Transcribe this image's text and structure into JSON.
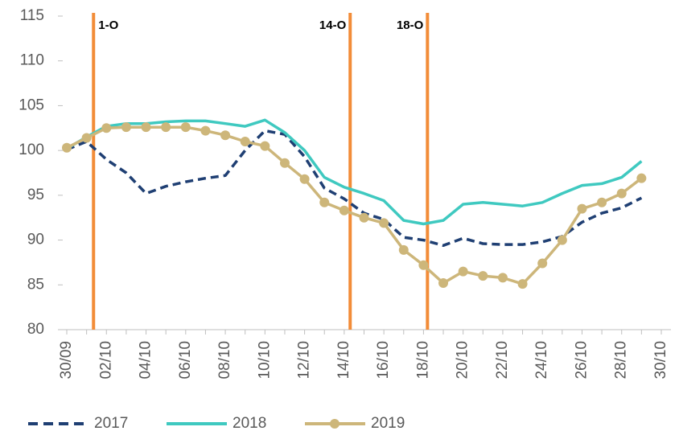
{
  "chart_data": {
    "type": "line",
    "categories": [
      "30/09",
      null,
      "02/10",
      null,
      "04/10",
      null,
      "06/10",
      null,
      "08/10",
      null,
      "10/10",
      null,
      "12/10",
      null,
      "14/10",
      null,
      "16/10",
      null,
      "18/10",
      null,
      "20/10",
      null,
      "22/10",
      null,
      "24/10",
      null,
      "26/10",
      null,
      "28/10",
      null,
      "30/10"
    ],
    "series": [
      {
        "name": "2017",
        "color": "#1f3f73",
        "style": "dashed",
        "values": [
          100.1,
          101.0,
          99.0,
          97.5,
          95.2,
          96.0,
          96.5,
          96.9,
          97.2,
          100.0,
          102.2,
          101.8,
          99.3,
          95.8,
          94.6,
          93.0,
          92.3,
          90.3,
          90.0,
          89.4,
          90.2,
          89.6,
          89.5,
          89.5,
          89.8,
          90.4,
          92.0,
          93.0,
          93.6,
          94.7,
          null
        ]
      },
      {
        "name": "2018",
        "color": "#3fc9c0",
        "style": "solid",
        "values": [
          100.2,
          101.5,
          102.7,
          103.0,
          103.0,
          103.2,
          103.3,
          103.3,
          103.0,
          102.7,
          103.4,
          102.0,
          100.0,
          97.0,
          95.9,
          95.2,
          94.4,
          92.2,
          91.8,
          92.2,
          94.0,
          94.2,
          94.0,
          93.8,
          94.2,
          95.2,
          96.1,
          96.3,
          97.0,
          98.8,
          null
        ]
      },
      {
        "name": "2019",
        "color": "#cdb67a",
        "style": "solid",
        "marker": "circle",
        "values": [
          100.3,
          101.4,
          102.5,
          102.6,
          102.6,
          102.6,
          102.6,
          102.2,
          101.7,
          101.0,
          100.5,
          98.6,
          96.8,
          94.2,
          93.3,
          92.5,
          91.9,
          88.9,
          87.2,
          85.2,
          86.5,
          86.0,
          85.8,
          85.1,
          87.4,
          90.0,
          93.5,
          94.2,
          95.2,
          96.9,
          null
        ]
      }
    ],
    "annotations": [
      {
        "label": "1-O",
        "x": 1.35,
        "color": "#f28c38"
      },
      {
        "label": "14-O",
        "x": 14.3,
        "color": "#f28c38"
      },
      {
        "label": "18-O",
        "x": 18.2,
        "color": "#f28c38"
      }
    ],
    "ylim": [
      80,
      115
    ],
    "yticks": [
      80,
      85,
      90,
      95,
      100,
      105,
      110,
      115
    ],
    "grid": false,
    "legend": "bottom"
  }
}
